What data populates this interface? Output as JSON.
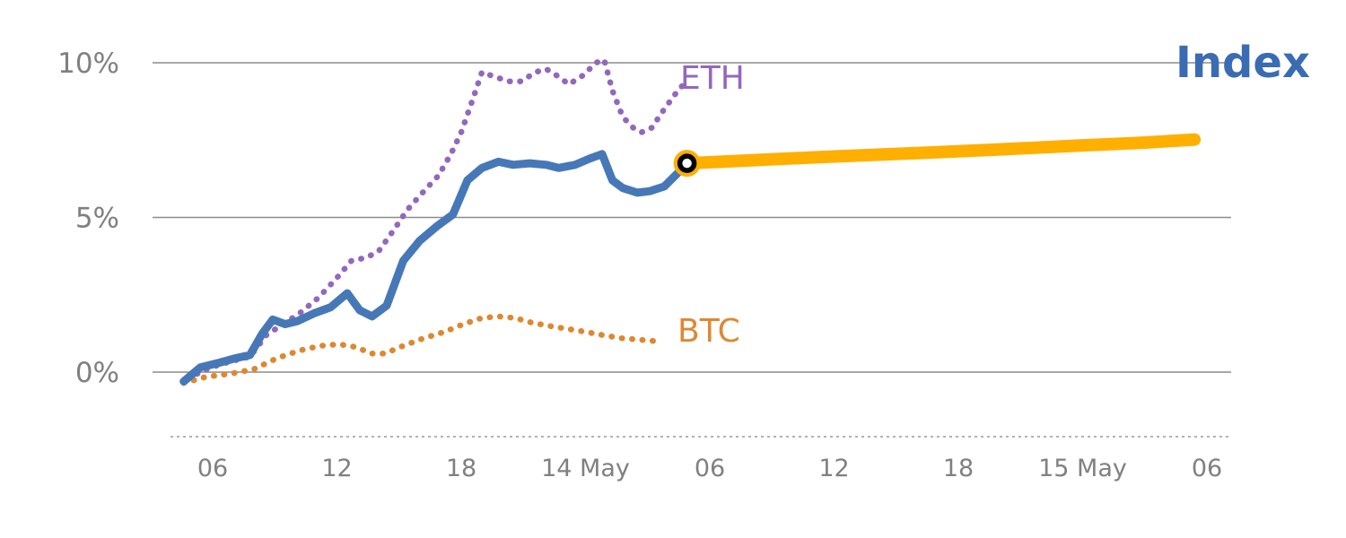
{
  "chart_data": {
    "type": "line",
    "title": "",
    "xlabel": "",
    "ylabel": "",
    "x_unit": "hours since 13 May 00:00",
    "x_domain": [
      3.2,
      55.5
    ],
    "y_domain": [
      -2.2,
      10.9
    ],
    "grid": "horizontal",
    "legend_position": "inline-annotations",
    "y_ticks": [
      {
        "value": 0,
        "label": "0%"
      },
      {
        "value": 5,
        "label": "5%"
      },
      {
        "value": 10,
        "label": "10%"
      }
    ],
    "x_ticks": [
      {
        "value": 6,
        "label": "06"
      },
      {
        "value": 12,
        "label": "12"
      },
      {
        "value": 18,
        "label": "18"
      },
      {
        "value": 24,
        "label": "14 May"
      },
      {
        "value": 30,
        "label": "06"
      },
      {
        "value": 36,
        "label": "12"
      },
      {
        "value": 42,
        "label": "18"
      },
      {
        "value": 48,
        "label": "15 May"
      },
      {
        "value": 54,
        "label": "06"
      }
    ],
    "series": [
      {
        "name": "BTC",
        "color": "#dd8831",
        "style": "dotted",
        "width": 6.5,
        "points": [
          [
            4.6,
            -0.35
          ],
          [
            5.7,
            -0.15
          ],
          [
            6.9,
            -0.05
          ],
          [
            8.0,
            0.1
          ],
          [
            9.1,
            0.45
          ],
          [
            10.2,
            0.7
          ],
          [
            11.2,
            0.85
          ],
          [
            12.1,
            0.9
          ],
          [
            13.0,
            0.8
          ],
          [
            13.6,
            0.6
          ],
          [
            14.3,
            0.6
          ],
          [
            15.2,
            0.85
          ],
          [
            16.2,
            1.1
          ],
          [
            17.2,
            1.3
          ],
          [
            18.1,
            1.55
          ],
          [
            19.0,
            1.75
          ],
          [
            19.8,
            1.8
          ],
          [
            20.6,
            1.75
          ],
          [
            21.4,
            1.6
          ],
          [
            22.2,
            1.5
          ],
          [
            23.1,
            1.4
          ],
          [
            24.0,
            1.3
          ],
          [
            24.8,
            1.2
          ],
          [
            25.7,
            1.1
          ],
          [
            26.6,
            1.05
          ],
          [
            27.4,
            1.0
          ]
        ]
      },
      {
        "name": "ETH",
        "color": "#9467bd",
        "style": "dotted",
        "width": 6.5,
        "points": [
          [
            4.8,
            -0.2
          ],
          [
            5.9,
            0.15
          ],
          [
            6.9,
            0.35
          ],
          [
            7.8,
            0.5
          ],
          [
            8.6,
            1.2
          ],
          [
            9.4,
            1.55
          ],
          [
            10.2,
            1.9
          ],
          [
            11.1,
            2.4
          ],
          [
            12.0,
            3.05
          ],
          [
            12.7,
            3.6
          ],
          [
            13.4,
            3.7
          ],
          [
            14.0,
            3.9
          ],
          [
            14.7,
            4.55
          ],
          [
            15.4,
            5.25
          ],
          [
            16.2,
            5.85
          ],
          [
            16.9,
            6.35
          ],
          [
            17.5,
            7.05
          ],
          [
            18.0,
            7.75
          ],
          [
            18.6,
            8.9
          ],
          [
            19.0,
            9.7
          ],
          [
            19.6,
            9.55
          ],
          [
            20.3,
            9.4
          ],
          [
            20.9,
            9.4
          ],
          [
            21.6,
            9.7
          ],
          [
            22.1,
            9.8
          ],
          [
            22.7,
            9.55
          ],
          [
            23.2,
            9.3
          ],
          [
            23.9,
            9.6
          ],
          [
            24.5,
            10.0
          ],
          [
            24.9,
            10.1
          ],
          [
            25.3,
            9.1
          ],
          [
            25.8,
            8.25
          ],
          [
            26.3,
            7.9
          ],
          [
            26.7,
            7.75
          ],
          [
            27.2,
            7.9
          ],
          [
            27.8,
            8.5
          ],
          [
            28.4,
            9.05
          ],
          [
            28.8,
            9.35
          ]
        ]
      },
      {
        "name": "Index",
        "color": "#4678b8",
        "style": "solid",
        "width": 9,
        "points": [
          [
            4.6,
            -0.3
          ],
          [
            5.4,
            0.15
          ],
          [
            6.3,
            0.3
          ],
          [
            7.1,
            0.45
          ],
          [
            7.8,
            0.55
          ],
          [
            8.4,
            1.25
          ],
          [
            8.9,
            1.7
          ],
          [
            9.5,
            1.55
          ],
          [
            10.1,
            1.65
          ],
          [
            10.9,
            1.9
          ],
          [
            11.7,
            2.1
          ],
          [
            12.5,
            2.55
          ],
          [
            13.1,
            2.0
          ],
          [
            13.7,
            1.8
          ],
          [
            14.4,
            2.15
          ],
          [
            15.2,
            3.6
          ],
          [
            16.0,
            4.25
          ],
          [
            16.8,
            4.7
          ],
          [
            17.6,
            5.1
          ],
          [
            18.3,
            6.2
          ],
          [
            19.0,
            6.6
          ],
          [
            19.8,
            6.8
          ],
          [
            20.5,
            6.7
          ],
          [
            21.3,
            6.75
          ],
          [
            22.1,
            6.7
          ],
          [
            22.7,
            6.6
          ],
          [
            23.5,
            6.7
          ],
          [
            24.2,
            6.9
          ],
          [
            24.8,
            7.05
          ],
          [
            25.3,
            6.2
          ],
          [
            25.8,
            5.95
          ],
          [
            26.5,
            5.8
          ],
          [
            27.1,
            5.85
          ],
          [
            27.8,
            6.0
          ],
          [
            28.4,
            6.4
          ],
          [
            28.9,
            6.75
          ]
        ]
      },
      {
        "name": "Index forecast",
        "color": "#ffaf00",
        "style": "solid",
        "width": 14,
        "points": [
          [
            28.9,
            6.75
          ],
          [
            32,
            6.85
          ],
          [
            36,
            6.97
          ],
          [
            40,
            7.08
          ],
          [
            44,
            7.2
          ],
          [
            48,
            7.33
          ],
          [
            51,
            7.42
          ],
          [
            53.4,
            7.52
          ]
        ]
      }
    ],
    "marker": {
      "x": 28.9,
      "y": 6.75,
      "outer_color": "#ffaf00",
      "ring_color": "#000000",
      "fill": "#ffffff"
    },
    "series_labels": {
      "eth": {
        "text": "ETH",
        "color": "#9467bd"
      },
      "btc": {
        "text": "BTC",
        "color": "#dd8831"
      },
      "index": {
        "text": "Index",
        "color": "#3a6cb4"
      }
    },
    "axis_colors": {
      "gridline": "#8c8c8c",
      "tick_text": "#808080",
      "axis_dashed": "#999999"
    }
  }
}
